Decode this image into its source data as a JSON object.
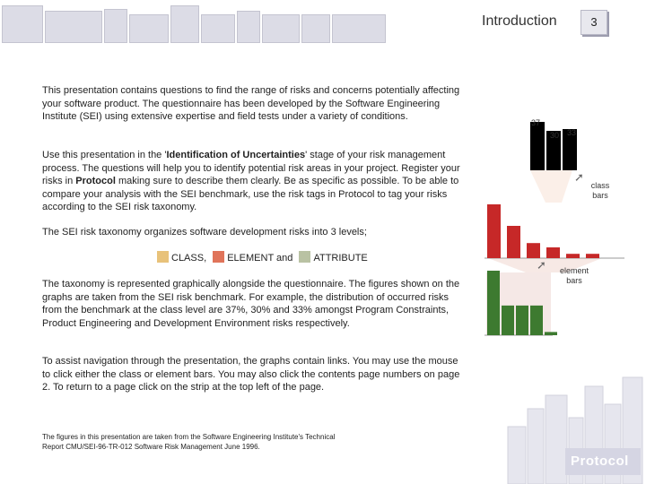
{
  "header": {
    "title": "Introduction",
    "page_number": "3"
  },
  "body": {
    "p1": "This presentation contains questions to find the range of risks and concerns potentially affecting your software product. The questionnaire has been developed by the Software Engineering Institute (SEI) using extensive expertise and field tests under a variety of conditions.",
    "p2_a": "Use this presentation in the '",
    "p2_bold1": "Identification of Uncertainties",
    "p2_b": "' stage of your risk management process. The questions will help you to identify potential risk areas in your project. Register your risks in ",
    "p2_bold2": "Protocol",
    "p2_c": " making sure to describe them clearly. Be as specific as possible. To be able to compare your analysis with the SEI benchmark, use the risk tags in Protocol to tag your risks according to the SEI risk taxonomy.",
    "p3": "The SEI risk taxonomy organizes software development risks into 3 levels;",
    "legend": {
      "class": "CLASS,",
      "element": "ELEMENT",
      "and": "and",
      "attribute": "ATTRIBUTE"
    },
    "p4": "The taxonomy is represented graphically alongside the questionnaire. The figures shown on the graphs are taken from the SEI risk benchmark. For example, the distribution of occurred risks from the benchmark at the class level are 37%, 30% and 33% amongst Program Constraints, Product Engineering and Development Environment risks respectively.",
    "p5": "To assist navigation through the presentation, the graphs contain links. You may use the mouse to click either the class or element bars. You may also click the contents page numbers on page 2. To return to a page click on the strip at the top left of the page.",
    "footnote": "The figures in this presentation are taken from the Software Engineering Institute's Technical Report CMU/SEI-96-TR-012 Software Risk Management June 1996."
  },
  "graphic": {
    "class_values": [
      "37",
      "30",
      "33"
    ],
    "class_bars_label": "class bars",
    "element_bars_label": "element bars",
    "class_bar_levels": [
      1.0,
      0.6,
      0.28,
      0.2,
      0.08,
      0.08
    ],
    "element_bar_levels": [
      1.0,
      0.46,
      0.46,
      0.46,
      0.05
    ]
  },
  "brand": {
    "logo_text": "Protocol"
  },
  "colors": {
    "class": "#e8c27a",
    "element": "#e0745a",
    "attribute": "#b9c2a3",
    "class_bar": "#c62828",
    "element_bar": "#3d7a30"
  }
}
